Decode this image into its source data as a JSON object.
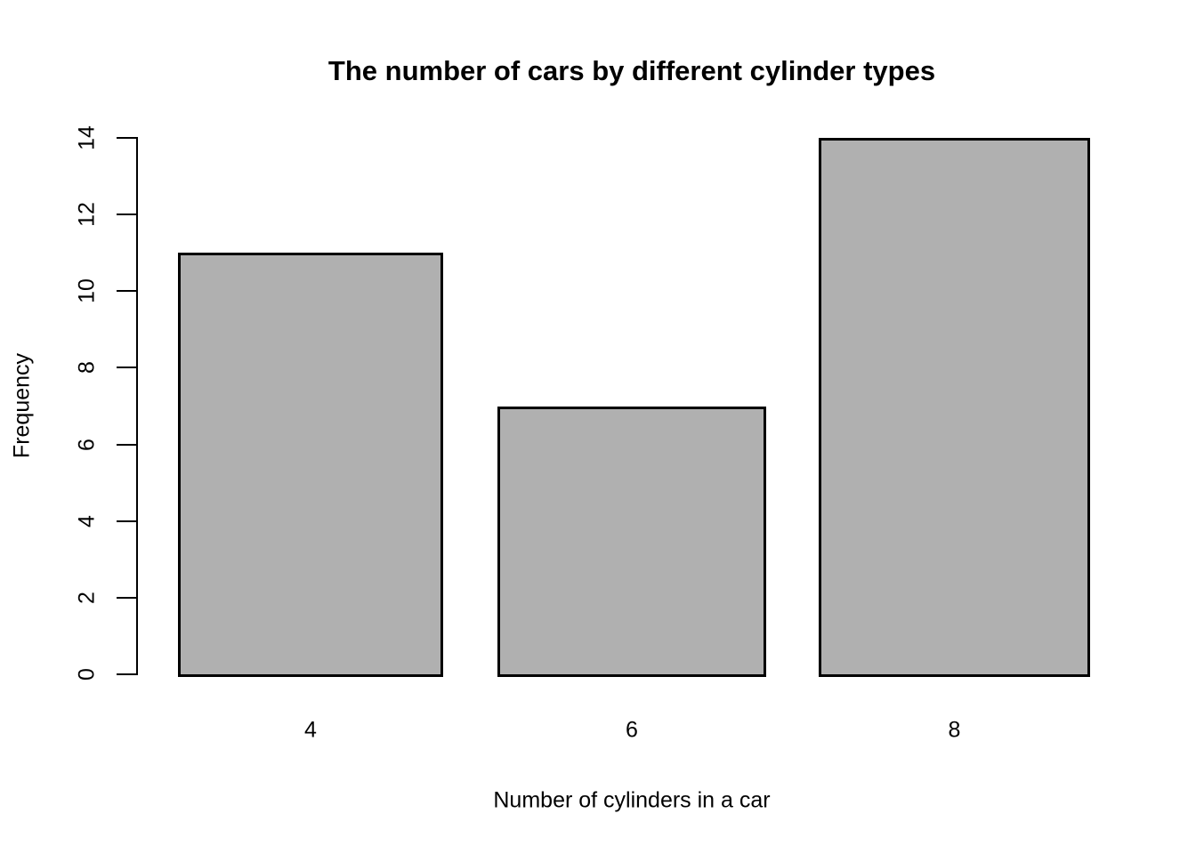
{
  "chart_data": {
    "type": "bar",
    "title": "The number of cars by different cylinder types",
    "xlabel": "Number of cylinders in a car",
    "ylabel": "Frequency",
    "categories": [
      "4",
      "6",
      "8"
    ],
    "values": [
      11,
      7,
      14
    ],
    "ylim": [
      0,
      14
    ],
    "yticks": [
      0,
      2,
      4,
      6,
      8,
      10,
      12,
      14
    ],
    "grid": false,
    "legend": "none",
    "colors": {
      "bar_fill": "#b0b0b0",
      "bar_border": "#000000",
      "axis": "#000000",
      "text": "#000000",
      "background": "#ffffff"
    }
  }
}
